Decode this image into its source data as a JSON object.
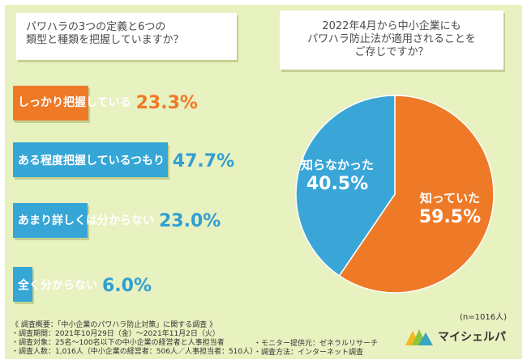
{
  "colors": {
    "bar1": "#ee7a27",
    "bar2": "#35a6d6",
    "bar3": "#35a6d6",
    "bar4": "#35a6d6",
    "pie_known": "#ee7a27",
    "pie_unknown": "#3aa6d7",
    "value_orange": "#ee7a27",
    "value_blue": "#2f9fd3",
    "background": "#e8f1c0"
  },
  "chart_data": [
    {
      "type": "bar",
      "title_lines": [
        "パワハラの3つの定義と6つの",
        "類型と種類を把握していますか？"
      ],
      "categories": [
        "しっかり把握している",
        "ある程度把握しているつもり",
        "あまり詳しくは分からない",
        "全く分からない"
      ],
      "values": [
        23.3,
        47.7,
        23.0,
        6.0
      ],
      "value_labels": [
        "23.3%",
        "47.7%",
        "23.0%",
        "6.0%"
      ]
    },
    {
      "type": "pie",
      "title_lines": [
        "2022年4月から中小企業にも",
        "パワハラ防止法が適用されることを",
        "ご存じですか？"
      ],
      "slices": [
        {
          "label": "知っていた",
          "value": 59.5,
          "value_label": "59.5%"
        },
        {
          "label": "知らなかった",
          "value": 40.5,
          "value_label": "40.5%"
        }
      ],
      "note": "(n=1016人)"
    }
  ],
  "survey_notes": {
    "left": [
      "《 調査概要：「中小企業のパワハラ防止対策」に関する調査 》",
      "・調査期間：2021年10月29日（金）〜2021年11月2日（火）",
      "・調査対象：25名〜100名以下の中小企業の経営者と人事担当者",
      "・調査人数：1,016人（中小企業の経営者：506人／人事担当者：510人）"
    ],
    "right": [
      "・モニター提供元：ゼネラルリサーチ",
      "・調査方法：インターネット調査"
    ]
  },
  "logo": {
    "text": "マイシェルパ"
  }
}
